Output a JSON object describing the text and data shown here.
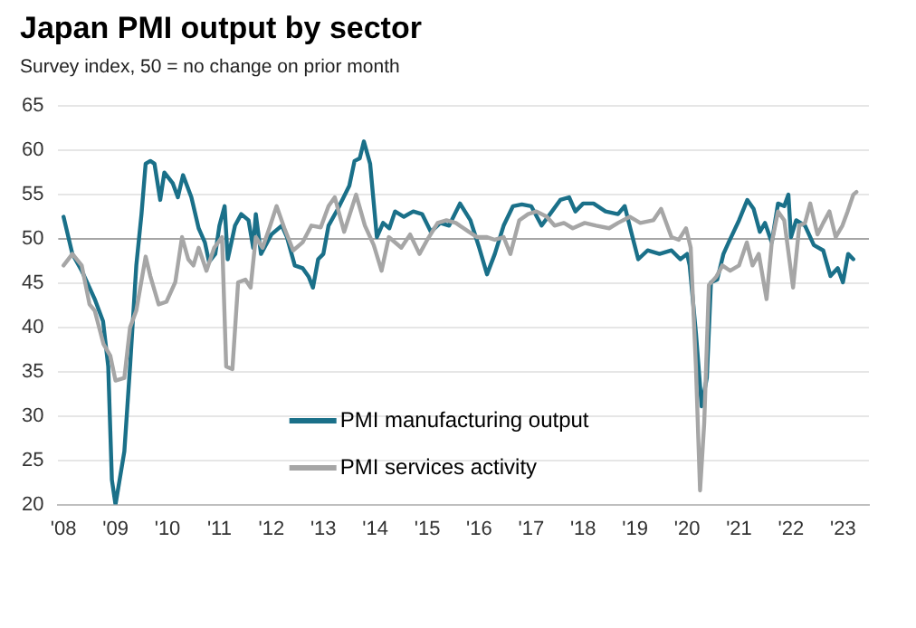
{
  "chart_data": {
    "type": "line",
    "title": "Japan PMI output by sector",
    "subtitle": "Survey index, 50 = no change on prior month",
    "xlim": [
      2007.9,
      2023.5
    ],
    "ylim": [
      20,
      65
    ],
    "xticks": [
      {
        "value": 2008,
        "label": "'08"
      },
      {
        "value": 2009,
        "label": "'09"
      },
      {
        "value": 2010,
        "label": "'10"
      },
      {
        "value": 2011,
        "label": "'11"
      },
      {
        "value": 2012,
        "label": "'12"
      },
      {
        "value": 2013,
        "label": "'13"
      },
      {
        "value": 2014,
        "label": "'14"
      },
      {
        "value": 2015,
        "label": "'15"
      },
      {
        "value": 2016,
        "label": "'16"
      },
      {
        "value": 2017,
        "label": "'17"
      },
      {
        "value": 2018,
        "label": "'18"
      },
      {
        "value": 2019,
        "label": "'19"
      },
      {
        "value": 2020,
        "label": "'20"
      },
      {
        "value": 2021,
        "label": "'21"
      },
      {
        "value": 2022,
        "label": "'22"
      },
      {
        "value": 2023,
        "label": "'23"
      }
    ],
    "yticks": [
      20,
      25,
      30,
      35,
      40,
      45,
      50,
      55,
      60,
      65
    ],
    "grid": "y",
    "legend": "bottom",
    "marker": "none",
    "line_style": "solid",
    "ref_lines": [
      {
        "axis": "y",
        "value": 50,
        "color": "#a6a6a6"
      }
    ],
    "series": [
      {
        "name": "PMI manufacturing output",
        "color": "#1a7089",
        "x": [
          2008.0,
          2008.17,
          2008.35,
          2008.5,
          2008.6,
          2008.76,
          2008.86,
          2008.93,
          2009.0,
          2009.17,
          2009.28,
          2009.4,
          2009.5,
          2009.58,
          2009.67,
          2009.75,
          2009.86,
          2009.94,
          2010.1,
          2010.2,
          2010.3,
          2010.46,
          2010.6,
          2010.72,
          2010.8,
          2010.92,
          2011.0,
          2011.1,
          2011.16,
          2011.3,
          2011.42,
          2011.56,
          2011.65,
          2011.7,
          2011.8,
          2012.0,
          2012.2,
          2012.3,
          2012.45,
          2012.6,
          2012.72,
          2012.8,
          2012.9,
          2013.0,
          2013.1,
          2013.28,
          2013.5,
          2013.6,
          2013.7,
          2013.78,
          2013.9,
          2014.03,
          2014.15,
          2014.27,
          2014.38,
          2014.55,
          2014.73,
          2014.9,
          2015.07,
          2015.25,
          2015.42,
          2015.63,
          2015.83,
          2016.0,
          2016.15,
          2016.3,
          2016.47,
          2016.65,
          2016.82,
          2017.0,
          2017.2,
          2017.4,
          2017.56,
          2017.73,
          2017.85,
          2018.0,
          2018.2,
          2018.43,
          2018.67,
          2018.8,
          2018.95,
          2019.06,
          2019.24,
          2019.47,
          2019.7,
          2019.87,
          2020.0,
          2020.05,
          2020.17,
          2020.28,
          2020.38,
          2020.46,
          2020.58,
          2020.7,
          2020.8,
          2021.0,
          2021.16,
          2021.28,
          2021.4,
          2021.5,
          2021.63,
          2021.75,
          2021.87,
          2021.95,
          2022.0,
          2022.1,
          2022.27,
          2022.44,
          2022.62,
          2022.76,
          2022.9,
          2023.0,
          2023.1,
          2023.2
        ],
        "values": [
          52.5,
          48.3,
          46.4,
          44.5,
          43.2,
          40.7,
          35.6,
          22.8,
          20,
          26,
          35.6,
          47,
          52.8,
          58.5,
          58.8,
          58.5,
          54.4,
          57.5,
          56.3,
          54.7,
          57.2,
          54.7,
          51.2,
          49.6,
          47.4,
          48.3,
          51.5,
          53.7,
          47.7,
          51.5,
          52.8,
          52.1,
          49,
          52.8,
          48.3,
          50.5,
          51.5,
          50.2,
          47,
          46.7,
          45.7,
          44.5,
          47.7,
          48.3,
          51.5,
          53.4,
          56,
          58.8,
          59.1,
          61,
          58.5,
          50.2,
          51.8,
          51.2,
          53.1,
          52.5,
          53.1,
          52.8,
          50.8,
          51.8,
          51.5,
          54,
          52.1,
          49,
          46,
          48.3,
          51.5,
          53.7,
          53.9,
          53.7,
          51.5,
          53.1,
          54.4,
          54.7,
          53.1,
          54,
          54,
          53.1,
          52.8,
          53.7,
          50.2,
          47.7,
          48.7,
          48.3,
          48.7,
          47.7,
          48.3,
          47,
          39.4,
          31.1,
          34.3,
          45.1,
          45.4,
          48.3,
          49.6,
          52.1,
          54.4,
          53.4,
          50.8,
          51.8,
          49.6,
          54,
          53.7,
          55,
          50.2,
          52.1,
          51.5,
          49.3,
          48.7,
          45.8,
          46.7,
          45.1,
          48.3,
          47.7
        ]
      },
      {
        "name": "PMI services activity",
        "color": "#a6a6a6",
        "x": [
          2008.0,
          2008.17,
          2008.35,
          2008.5,
          2008.6,
          2008.77,
          2008.9,
          2009.0,
          2009.17,
          2009.28,
          2009.4,
          2009.58,
          2009.67,
          2009.83,
          2009.98,
          2010.15,
          2010.28,
          2010.4,
          2010.5,
          2010.6,
          2010.75,
          2010.9,
          2011.05,
          2011.13,
          2011.25,
          2011.36,
          2011.5,
          2011.6,
          2011.7,
          2011.83,
          2011.96,
          2012.1,
          2012.25,
          2012.42,
          2012.6,
          2012.77,
          2012.95,
          2013.1,
          2013.22,
          2013.4,
          2013.63,
          2013.8,
          2013.97,
          2014.12,
          2014.26,
          2014.5,
          2014.67,
          2014.85,
          2015.0,
          2015.2,
          2015.37,
          2015.55,
          2015.8,
          2015.96,
          2016.15,
          2016.3,
          2016.47,
          2016.6,
          2016.77,
          2016.94,
          2017.1,
          2017.3,
          2017.45,
          2017.63,
          2017.8,
          2018.03,
          2018.25,
          2018.5,
          2018.67,
          2018.9,
          2019.1,
          2019.35,
          2019.5,
          2019.7,
          2019.84,
          2019.98,
          2020.07,
          2020.17,
          2020.25,
          2020.33,
          2020.42,
          2020.56,
          2020.68,
          2020.83,
          2021.0,
          2021.15,
          2021.26,
          2021.38,
          2021.53,
          2021.63,
          2021.75,
          2021.87,
          2022.04,
          2022.16,
          2022.27,
          2022.37,
          2022.51,
          2022.62,
          2022.74,
          2022.86,
          2022.99,
          2023.09,
          2023.2,
          2023.26
        ],
        "values": [
          47,
          48.3,
          47,
          42.6,
          41.9,
          38.1,
          36.8,
          34,
          34.3,
          40,
          41.9,
          48,
          45.8,
          42.6,
          42.9,
          45.1,
          50.2,
          47.7,
          47,
          49,
          46.4,
          49,
          50.2,
          35.6,
          35.3,
          45.1,
          45.4,
          44.5,
          50.2,
          49,
          51.2,
          53.7,
          51.2,
          48.7,
          49.6,
          51.5,
          51.3,
          53.7,
          54.7,
          50.8,
          55,
          51.5,
          49.3,
          46.4,
          50.2,
          49,
          50.5,
          48.3,
          49.9,
          51.8,
          52.1,
          51.8,
          50.8,
          50.2,
          50.2,
          49.9,
          50.2,
          48.3,
          52.1,
          52.8,
          53.1,
          52.5,
          51.5,
          51.8,
          51.2,
          51.8,
          51.5,
          51.2,
          51.8,
          52.5,
          51.8,
          52.1,
          53.4,
          50.2,
          49.9,
          51.2,
          49,
          35.6,
          21.6,
          29.2,
          44.8,
          45.7,
          47,
          46.4,
          47,
          49.6,
          47,
          48.3,
          43.2,
          49.6,
          53.1,
          52.1,
          44.5,
          51.5,
          51.8,
          54,
          50.5,
          51.8,
          53.1,
          50.2,
          51.5,
          53.1,
          55,
          55.3
        ]
      }
    ]
  }
}
